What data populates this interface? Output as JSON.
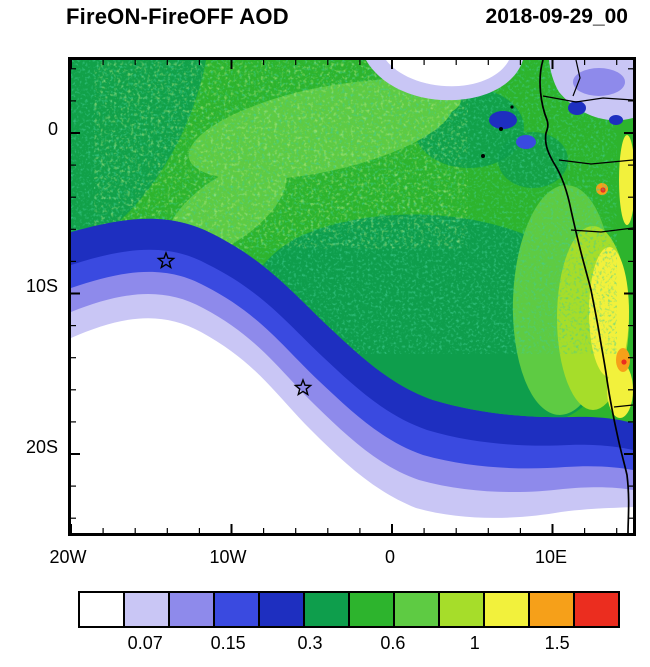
{
  "title": "FireON-FireOFF AOD",
  "timestamp": "2018-09-29_00",
  "axes": {
    "y_tick_labels": [
      "0",
      "10S",
      "20S"
    ],
    "x_tick_labels": [
      "20W",
      "10W",
      "0",
      "10E"
    ]
  },
  "colorbar": {
    "tick_labels": [
      "0.07",
      "0.15",
      "0.3",
      "0.6",
      "1",
      "1.5"
    ],
    "colors": [
      "#ffffff",
      "#c9c6f5",
      "#8e8aeb",
      "#3a4ae0",
      "#1e2fc0",
      "#0e9e4c",
      "#2db42d",
      "#5ecb43",
      "#a6dd2a",
      "#f2f13c",
      "#f6a019",
      "#eb2d1f"
    ]
  },
  "chart_data": {
    "type": "heatmap",
    "title": "FireON-FireOFF AOD",
    "timestamp": "2018-09-29_00",
    "description": "Filled-contour lat/lon map of the AOD difference between fire-on and fire-off simulations over the South Atlantic and western/southern Africa, with coastlines and country borders.",
    "lon_range": [
      "20W",
      "15E"
    ],
    "lat_range": [
      "5N",
      "25S"
    ],
    "x_tick_labels": [
      "20W",
      "10W",
      "0",
      "10E"
    ],
    "y_tick_labels": [
      "0",
      "10S",
      "20S"
    ],
    "contour_level_labels": [
      "0.07",
      "0.15",
      "0.3",
      "0.6",
      "1",
      "1.5"
    ],
    "palette": [
      "#ffffff",
      "#c9c6f5",
      "#8e8aeb",
      "#3a4ae0",
      "#1e2fc0",
      "#0e9e4c",
      "#2db42d",
      "#5ecb43",
      "#a6dd2a",
      "#f2f13c",
      "#f6a019",
      "#eb2d1f"
    ],
    "markers": [
      {
        "symbol": "open-star",
        "approx_lon": "14W",
        "approx_lat": "8S"
      },
      {
        "symbol": "open-star",
        "approx_lon": "5.5W",
        "approx_lat": "16S"
      }
    ],
    "field_summary": "Minimum (<0.07, white) over the south-western ocean; an arc-shaped purple/blue gradient band (0.07-0.3) curves from the west edge down and across to the south-east; a broad green maximum (0.3-0.6) covers the Gulf of Guinea and central region; highest values (0.6-1.5, yellow-green/yellow with small orange-red spots) lie along and inland of the Angola coast; small white/lavender patches along the northern edge."
  }
}
